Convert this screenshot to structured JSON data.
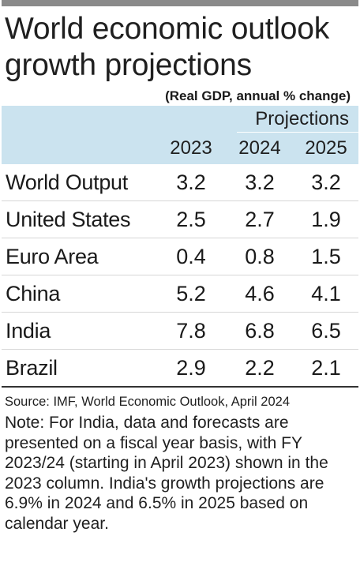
{
  "header": {
    "title_line1": "World economic outlook",
    "title_line2": "growth projections",
    "subtitle": "(Real GDP, annual % change)"
  },
  "table": {
    "projections_label": "Projections",
    "years": [
      "2023",
      "2024",
      "2025"
    ],
    "rows": [
      {
        "country": "World Output",
        "values": [
          "3.2",
          "3.2",
          "3.2"
        ]
      },
      {
        "country": "United States",
        "values": [
          "2.5",
          "2.7",
          "1.9"
        ]
      },
      {
        "country": "Euro Area",
        "values": [
          "0.4",
          "0.8",
          "1.5"
        ]
      },
      {
        "country": "China",
        "values": [
          "5.2",
          "4.6",
          "4.1"
        ]
      },
      {
        "country": "India",
        "values": [
          "7.8",
          "6.8",
          "6.5"
        ]
      },
      {
        "country": "Brazil",
        "values": [
          "2.9",
          "2.2",
          "2.1"
        ]
      }
    ]
  },
  "footer": {
    "source": "Source: IMF, World Economic Outlook, April 2024",
    "note": "Note: For India, data and forecasts are presented on a fiscal year basis, with FY 2023/24 (starting in April 2023) shown in the 2023 column. India's growth projections are 6.9% in 2024 and 6.5% in 2025 based on calendar year."
  },
  "colors": {
    "top_bar": "#8a8a8a",
    "header_background": "#cbe3ef"
  }
}
